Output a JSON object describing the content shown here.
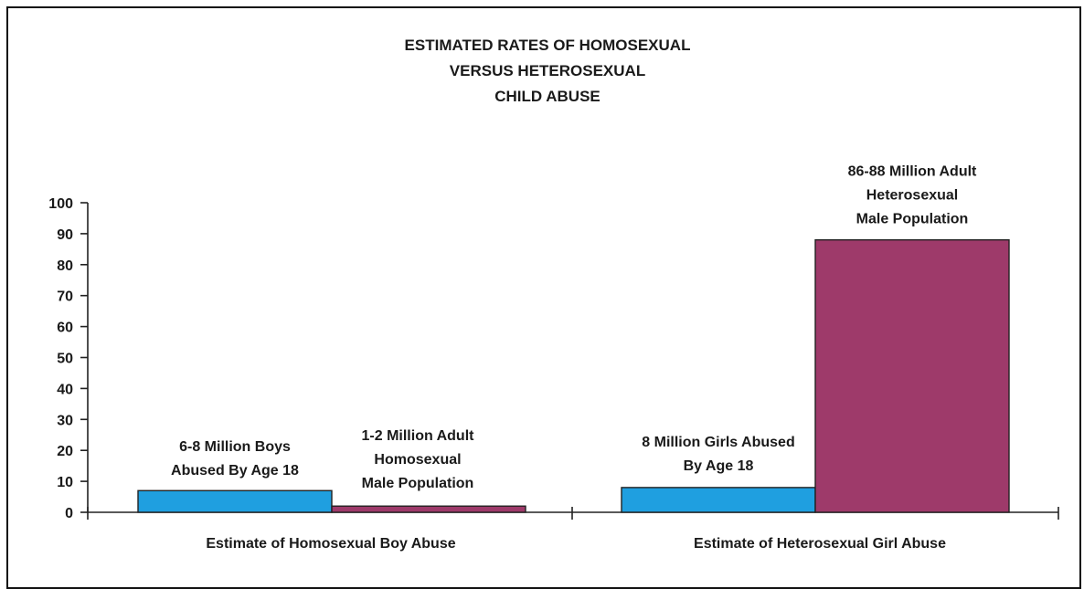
{
  "chart_data": {
    "type": "bar",
    "title": [
      "ESTIMATED RATES OF HOMOSEXUAL",
      "VERSUS HETEROSEXUAL",
      "CHILD ABUSE"
    ],
    "categories": [
      "Estimate of Homosexual Boy Abuse",
      "Estimate of Heterosexual Girl Abuse"
    ],
    "y_ticks": [
      "0",
      "10",
      "20",
      "30",
      "40",
      "50",
      "60",
      "70",
      "80",
      "90",
      "100"
    ],
    "ylim": [
      0,
      100
    ],
    "grid": false,
    "legend": "none",
    "bars": [
      {
        "category_index": 0,
        "slot": 0,
        "value": 7,
        "color": "#1f9fe0",
        "label": [
          "6-8 Million Boys",
          "Abused By Age 18"
        ]
      },
      {
        "category_index": 0,
        "slot": 1,
        "value": 2,
        "color": "#9e3a6a",
        "label": [
          "1-2 Million Adult",
          "Homosexual",
          "Male Population"
        ]
      },
      {
        "category_index": 1,
        "slot": 0,
        "value": 8,
        "color": "#1f9fe0",
        "label": [
          "8 Million Girls Abused",
          "By Age 18"
        ]
      },
      {
        "category_index": 1,
        "slot": 1,
        "value": 88,
        "color": "#9e3a6a",
        "label": [
          "86-88 Million Adult",
          "Heterosexual",
          "Male Population"
        ]
      }
    ]
  }
}
